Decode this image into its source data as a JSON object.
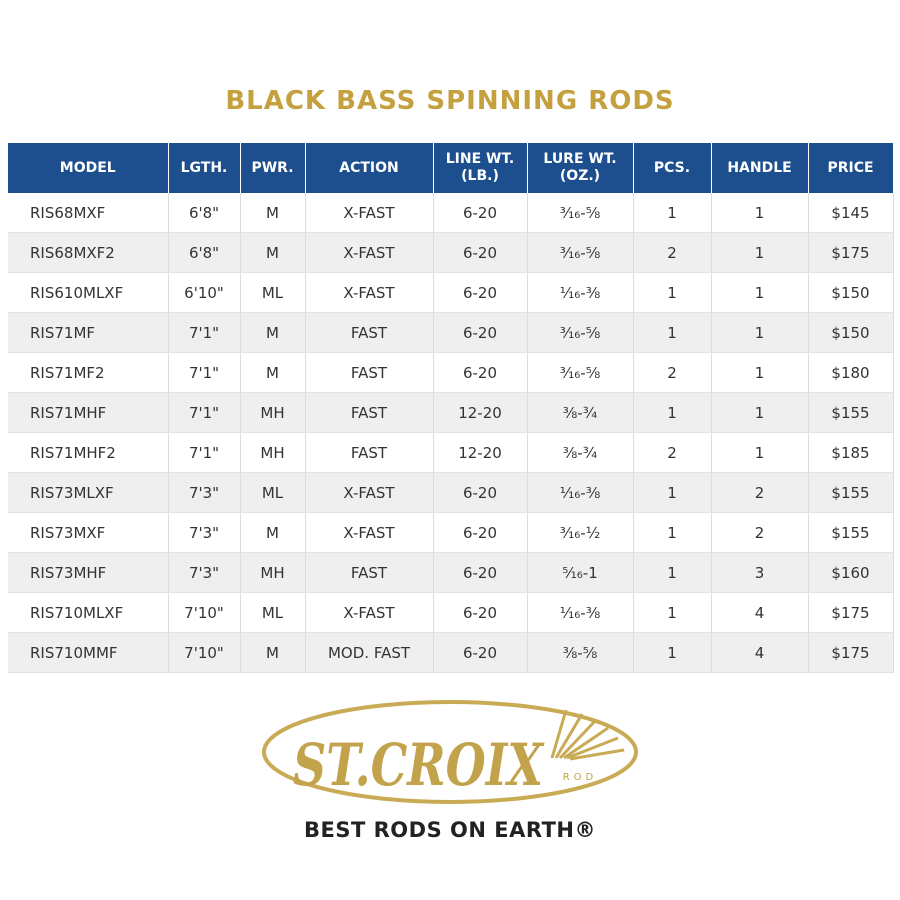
{
  "header": {
    "title": "BLACK BASS SPINNING RODS"
  },
  "table": {
    "columns": [
      "MODEL",
      "LGTH.",
      "PWR.",
      "ACTION",
      "LINE WT. (LB.)",
      "LURE WT. (OZ.)",
      "PCS.",
      "HANDLE",
      "PRICE"
    ],
    "rows": [
      [
        "RIS68MXF",
        "6'8\"",
        "M",
        "X-FAST",
        "6-20",
        "³⁄₁₆-⅝",
        "1",
        "1",
        "$145"
      ],
      [
        "RIS68MXF2",
        "6'8\"",
        "M",
        "X-FAST",
        "6-20",
        "³⁄₁₆-⅝",
        "2",
        "1",
        "$175"
      ],
      [
        "RIS610MLXF",
        "6'10\"",
        "ML",
        "X-FAST",
        "6-20",
        "¹⁄₁₆-⅜",
        "1",
        "1",
        "$150"
      ],
      [
        "RIS71MF",
        "7'1\"",
        "M",
        "FAST",
        "6-20",
        "³⁄₁₆-⅝",
        "1",
        "1",
        "$150"
      ],
      [
        "RIS71MF2",
        "7'1\"",
        "M",
        "FAST",
        "6-20",
        "³⁄₁₆-⅝",
        "2",
        "1",
        "$180"
      ],
      [
        "RIS71MHF",
        "7'1\"",
        "MH",
        "FAST",
        "12-20",
        "⅜-¾",
        "1",
        "1",
        "$155"
      ],
      [
        "RIS71MHF2",
        "7'1\"",
        "MH",
        "FAST",
        "12-20",
        "⅜-¾",
        "2",
        "1",
        "$185"
      ],
      [
        "RIS73MLXF",
        "7'3\"",
        "ML",
        "X-FAST",
        "6-20",
        "¹⁄₁₆-⅜",
        "1",
        "2",
        "$155"
      ],
      [
        "RIS73MXF",
        "7'3\"",
        "M",
        "X-FAST",
        "6-20",
        "³⁄₁₆-½",
        "1",
        "2",
        "$155"
      ],
      [
        "RIS73MHF",
        "7'3\"",
        "MH",
        "FAST",
        "6-20",
        "⁵⁄₁₆-1",
        "1",
        "3",
        "$160"
      ],
      [
        "RIS710MLXF",
        "7'10\"",
        "ML",
        "X-FAST",
        "6-20",
        "¹⁄₁₆-⅜",
        "1",
        "4",
        "$175"
      ],
      [
        "RIS710MMF",
        "7'10\"",
        "M",
        "MOD. FAST",
        "6-20",
        "⅜-⅝",
        "1",
        "4",
        "$175"
      ]
    ]
  },
  "logo": {
    "brand": "ST.CROIX",
    "sub": "ROD",
    "tagline": "BEST RODS ON EARTH®"
  }
}
